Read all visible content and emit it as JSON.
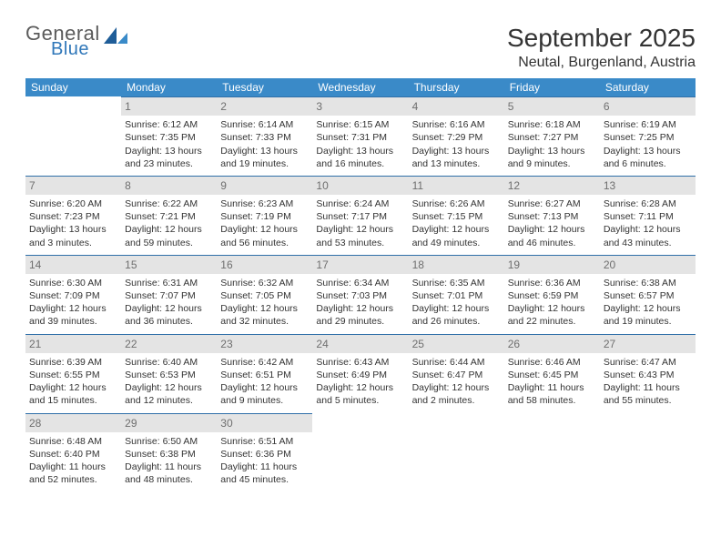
{
  "logo": {
    "word1": "General",
    "word2": "Blue",
    "color1": "#5b5b5b",
    "color2": "#2f77b9"
  },
  "title": "September 2025",
  "location": "Neutal, Burgenland, Austria",
  "colors": {
    "header_bg": "#3a8ac8",
    "header_text": "#ffffff",
    "daynum_bg": "#e4e4e4",
    "daynum_text": "#6f6f6f",
    "daynum_border": "#2f6fa8",
    "body_text": "#333333",
    "page_bg": "#ffffff"
  },
  "fonts": {
    "title_size": 28,
    "location_size": 16,
    "weekday_size": 12,
    "daynum_size": 12,
    "body_size": 10.5
  },
  "weekdays": [
    "Sunday",
    "Monday",
    "Tuesday",
    "Wednesday",
    "Thursday",
    "Friday",
    "Saturday"
  ],
  "weeks": [
    [
      {
        "num": "",
        "sunrise": "",
        "sunset": "",
        "daylight": ""
      },
      {
        "num": "1",
        "sunrise": "Sunrise: 6:12 AM",
        "sunset": "Sunset: 7:35 PM",
        "daylight": "Daylight: 13 hours and 23 minutes."
      },
      {
        "num": "2",
        "sunrise": "Sunrise: 6:14 AM",
        "sunset": "Sunset: 7:33 PM",
        "daylight": "Daylight: 13 hours and 19 minutes."
      },
      {
        "num": "3",
        "sunrise": "Sunrise: 6:15 AM",
        "sunset": "Sunset: 7:31 PM",
        "daylight": "Daylight: 13 hours and 16 minutes."
      },
      {
        "num": "4",
        "sunrise": "Sunrise: 6:16 AM",
        "sunset": "Sunset: 7:29 PM",
        "daylight": "Daylight: 13 hours and 13 minutes."
      },
      {
        "num": "5",
        "sunrise": "Sunrise: 6:18 AM",
        "sunset": "Sunset: 7:27 PM",
        "daylight": "Daylight: 13 hours and 9 minutes."
      },
      {
        "num": "6",
        "sunrise": "Sunrise: 6:19 AM",
        "sunset": "Sunset: 7:25 PM",
        "daylight": "Daylight: 13 hours and 6 minutes."
      }
    ],
    [
      {
        "num": "7",
        "sunrise": "Sunrise: 6:20 AM",
        "sunset": "Sunset: 7:23 PM",
        "daylight": "Daylight: 13 hours and 3 minutes."
      },
      {
        "num": "8",
        "sunrise": "Sunrise: 6:22 AM",
        "sunset": "Sunset: 7:21 PM",
        "daylight": "Daylight: 12 hours and 59 minutes."
      },
      {
        "num": "9",
        "sunrise": "Sunrise: 6:23 AM",
        "sunset": "Sunset: 7:19 PM",
        "daylight": "Daylight: 12 hours and 56 minutes."
      },
      {
        "num": "10",
        "sunrise": "Sunrise: 6:24 AM",
        "sunset": "Sunset: 7:17 PM",
        "daylight": "Daylight: 12 hours and 53 minutes."
      },
      {
        "num": "11",
        "sunrise": "Sunrise: 6:26 AM",
        "sunset": "Sunset: 7:15 PM",
        "daylight": "Daylight: 12 hours and 49 minutes."
      },
      {
        "num": "12",
        "sunrise": "Sunrise: 6:27 AM",
        "sunset": "Sunset: 7:13 PM",
        "daylight": "Daylight: 12 hours and 46 minutes."
      },
      {
        "num": "13",
        "sunrise": "Sunrise: 6:28 AM",
        "sunset": "Sunset: 7:11 PM",
        "daylight": "Daylight: 12 hours and 43 minutes."
      }
    ],
    [
      {
        "num": "14",
        "sunrise": "Sunrise: 6:30 AM",
        "sunset": "Sunset: 7:09 PM",
        "daylight": "Daylight: 12 hours and 39 minutes."
      },
      {
        "num": "15",
        "sunrise": "Sunrise: 6:31 AM",
        "sunset": "Sunset: 7:07 PM",
        "daylight": "Daylight: 12 hours and 36 minutes."
      },
      {
        "num": "16",
        "sunrise": "Sunrise: 6:32 AM",
        "sunset": "Sunset: 7:05 PM",
        "daylight": "Daylight: 12 hours and 32 minutes."
      },
      {
        "num": "17",
        "sunrise": "Sunrise: 6:34 AM",
        "sunset": "Sunset: 7:03 PM",
        "daylight": "Daylight: 12 hours and 29 minutes."
      },
      {
        "num": "18",
        "sunrise": "Sunrise: 6:35 AM",
        "sunset": "Sunset: 7:01 PM",
        "daylight": "Daylight: 12 hours and 26 minutes."
      },
      {
        "num": "19",
        "sunrise": "Sunrise: 6:36 AM",
        "sunset": "Sunset: 6:59 PM",
        "daylight": "Daylight: 12 hours and 22 minutes."
      },
      {
        "num": "20",
        "sunrise": "Sunrise: 6:38 AM",
        "sunset": "Sunset: 6:57 PM",
        "daylight": "Daylight: 12 hours and 19 minutes."
      }
    ],
    [
      {
        "num": "21",
        "sunrise": "Sunrise: 6:39 AM",
        "sunset": "Sunset: 6:55 PM",
        "daylight": "Daylight: 12 hours and 15 minutes."
      },
      {
        "num": "22",
        "sunrise": "Sunrise: 6:40 AM",
        "sunset": "Sunset: 6:53 PM",
        "daylight": "Daylight: 12 hours and 12 minutes."
      },
      {
        "num": "23",
        "sunrise": "Sunrise: 6:42 AM",
        "sunset": "Sunset: 6:51 PM",
        "daylight": "Daylight: 12 hours and 9 minutes."
      },
      {
        "num": "24",
        "sunrise": "Sunrise: 6:43 AM",
        "sunset": "Sunset: 6:49 PM",
        "daylight": "Daylight: 12 hours and 5 minutes."
      },
      {
        "num": "25",
        "sunrise": "Sunrise: 6:44 AM",
        "sunset": "Sunset: 6:47 PM",
        "daylight": "Daylight: 12 hours and 2 minutes."
      },
      {
        "num": "26",
        "sunrise": "Sunrise: 6:46 AM",
        "sunset": "Sunset: 6:45 PM",
        "daylight": "Daylight: 11 hours and 58 minutes."
      },
      {
        "num": "27",
        "sunrise": "Sunrise: 6:47 AM",
        "sunset": "Sunset: 6:43 PM",
        "daylight": "Daylight: 11 hours and 55 minutes."
      }
    ],
    [
      {
        "num": "28",
        "sunrise": "Sunrise: 6:48 AM",
        "sunset": "Sunset: 6:40 PM",
        "daylight": "Daylight: 11 hours and 52 minutes."
      },
      {
        "num": "29",
        "sunrise": "Sunrise: 6:50 AM",
        "sunset": "Sunset: 6:38 PM",
        "daylight": "Daylight: 11 hours and 48 minutes."
      },
      {
        "num": "30",
        "sunrise": "Sunrise: 6:51 AM",
        "sunset": "Sunset: 6:36 PM",
        "daylight": "Daylight: 11 hours and 45 minutes."
      },
      {
        "num": "",
        "sunrise": "",
        "sunset": "",
        "daylight": ""
      },
      {
        "num": "",
        "sunrise": "",
        "sunset": "",
        "daylight": ""
      },
      {
        "num": "",
        "sunrise": "",
        "sunset": "",
        "daylight": ""
      },
      {
        "num": "",
        "sunrise": "",
        "sunset": "",
        "daylight": ""
      }
    ]
  ]
}
